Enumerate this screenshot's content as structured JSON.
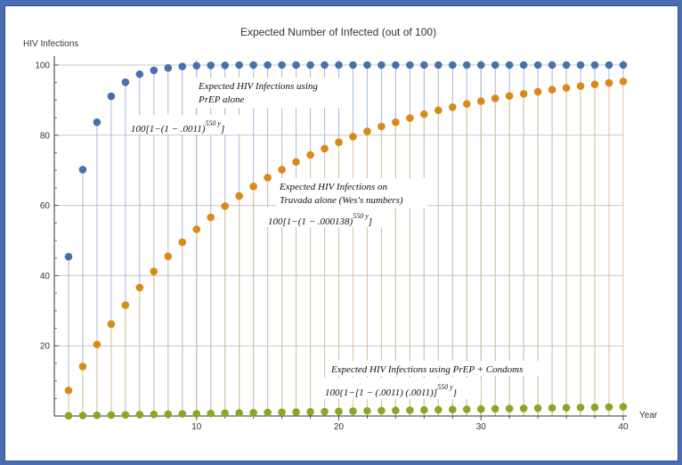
{
  "chart_data": {
    "type": "scatter",
    "title": "Expected Number of Infected (out of 100)",
    "xlabel": "Year",
    "ylabel": "HIV Infections",
    "xlim": [
      0,
      40
    ],
    "ylim": [
      0,
      100
    ],
    "x_ticks": [
      10,
      20,
      30,
      40
    ],
    "y_ticks": [
      20,
      40,
      60,
      80,
      100
    ],
    "grid": true,
    "drop_lines": true,
    "x": [
      1,
      2,
      3,
      4,
      5,
      6,
      7,
      8,
      9,
      10,
      11,
      12,
      13,
      14,
      15,
      16,
      17,
      18,
      19,
      20,
      21,
      22,
      23,
      24,
      25,
      26,
      27,
      28,
      29,
      30,
      31,
      32,
      33,
      34,
      35,
      36,
      37,
      38,
      39,
      40
    ],
    "series": [
      {
        "color": "#4a6fae",
        "values": [
          45.4,
          70.2,
          83.7,
          91.1,
          95.1,
          97.4,
          98.5,
          99.2,
          99.6,
          99.8,
          99.9,
          99.9,
          100,
          100,
          100,
          100,
          100,
          100,
          100,
          100,
          100,
          100,
          100,
          100,
          100,
          100,
          100,
          100,
          100,
          100,
          100,
          100,
          100,
          100,
          100,
          100,
          100,
          100,
          100,
          100
        ]
      },
      {
        "color": "#d98a17",
        "values": [
          7.3,
          14.1,
          20.4,
          26.2,
          31.6,
          36.6,
          41.2,
          45.5,
          49.5,
          53.2,
          56.6,
          59.8,
          62.7,
          65.4,
          67.9,
          70.2,
          72.4,
          74.4,
          76.2,
          78.0,
          79.6,
          81.1,
          82.5,
          83.7,
          84.9,
          86.0,
          87.1,
          88.0,
          88.9,
          89.7,
          90.5,
          91.2,
          91.8,
          92.4,
          93.0,
          93.5,
          94.0,
          94.5,
          94.9,
          95.3
        ]
      },
      {
        "color": "#88a824",
        "values": [
          0.07,
          0.13,
          0.2,
          0.27,
          0.33,
          0.4,
          0.47,
          0.53,
          0.6,
          0.66,
          0.73,
          0.8,
          0.86,
          0.93,
          1.0,
          1.06,
          1.13,
          1.19,
          1.26,
          1.32,
          1.39,
          1.46,
          1.52,
          1.59,
          1.65,
          1.72,
          1.78,
          1.85,
          1.91,
          1.98,
          2.04,
          2.11,
          2.17,
          2.24,
          2.3,
          2.37,
          2.43,
          2.5,
          2.56,
          2.63
        ]
      }
    ],
    "annotations": [
      {
        "lines": [
          "Expected HIV Infections using",
          "PrEP alone"
        ],
        "formula": "100[1−(1 − .0011)",
        "formula_sup": "550 y",
        "formula_end": "]"
      },
      {
        "lines": [
          "Expected HIV Infections on",
          "Truvada alone (Wes's numbers)"
        ],
        "formula": "100[1−(1 − .000138)",
        "formula_sup": "550 y",
        "formula_end": "]"
      },
      {
        "lines": [
          "Expected HIV Infections using PrEP + Condoms"
        ],
        "formula": "100{1−[1 − (.0011) (.0011)]",
        "formula_sup": "550 y",
        "formula_end": "}"
      }
    ]
  }
}
